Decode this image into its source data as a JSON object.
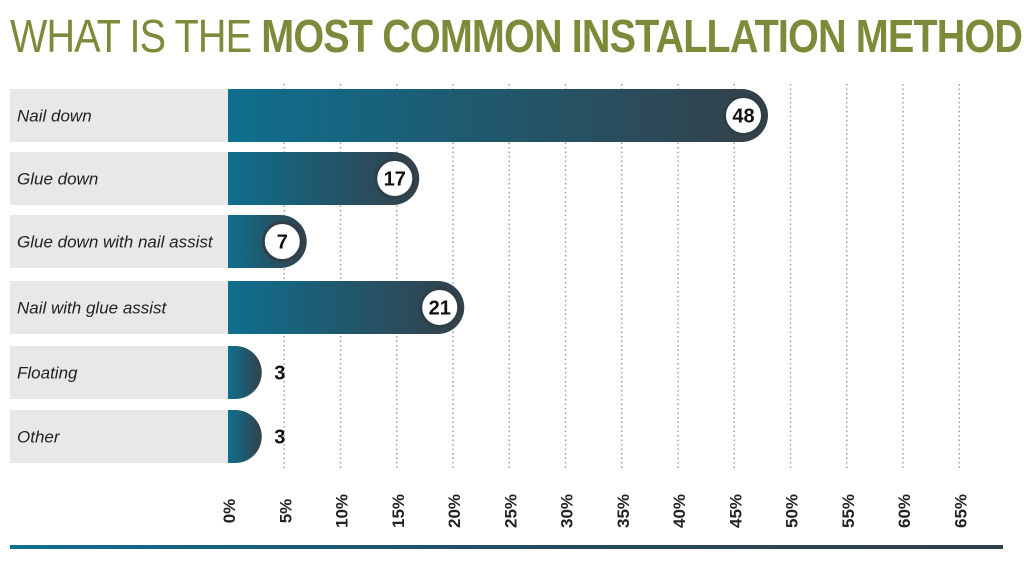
{
  "title": {
    "light": "WHAT IS THE",
    "bold": "MOST COMMON INSTALLATION METHOD?"
  },
  "colors": {
    "title": "#7d8a3a",
    "bar_start": "#0e6f8e",
    "bar_end": "#34404a",
    "label_bg": "#e8e8e8",
    "grid": "#9a9a9a"
  },
  "chart_data": {
    "type": "bar",
    "orientation": "horizontal",
    "title": "WHAT IS THE MOST COMMON INSTALLATION METHOD?",
    "categories": [
      "Nail down",
      "Glue down",
      "Glue down with nail assist",
      "Nail with glue assist",
      "Floating",
      "Other"
    ],
    "values": [
      48,
      17,
      7,
      21,
      3,
      3
    ],
    "xlim": [
      0,
      65
    ],
    "xticks": [
      "0%",
      "5%",
      "10%",
      "15%",
      "20%",
      "25%",
      "30%",
      "35%",
      "40%",
      "45%",
      "50%",
      "55%",
      "60%",
      "65%"
    ],
    "grid": true,
    "xlabel": "",
    "ylabel": ""
  }
}
